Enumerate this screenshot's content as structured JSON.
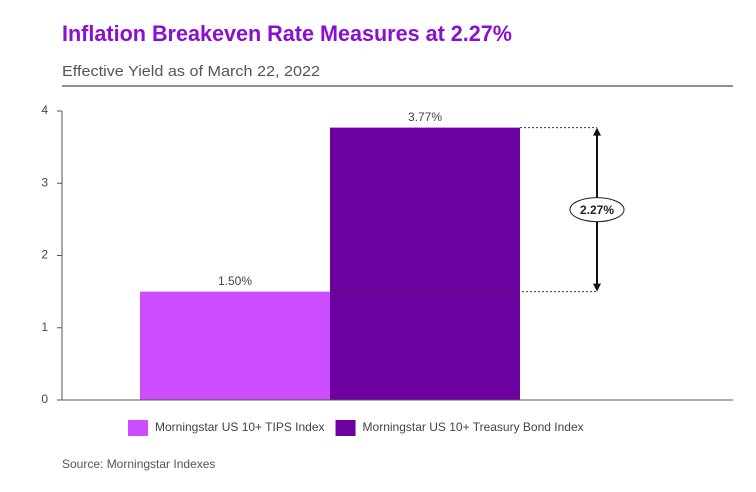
{
  "chart_data": {
    "type": "bar",
    "title": "Inflation Breakeven Rate Measures at 2.27%",
    "subtitle": "Effective Yield as of March 22, 2022",
    "categories": [
      "Morningstar US 10+ TIPS Index",
      "Morningstar US 10+ Treasury Bond Index"
    ],
    "values": [
      1.5,
      3.77
    ],
    "value_labels": [
      "1.50%",
      "3.77%"
    ],
    "colors": [
      "#cc4dff",
      "#6c00a0"
    ],
    "ylim": [
      0,
      4
    ],
    "yticks": [
      0,
      1,
      2,
      3,
      4
    ],
    "annotation": "2.27%",
    "source": "Source: Morningstar Indexes"
  }
}
